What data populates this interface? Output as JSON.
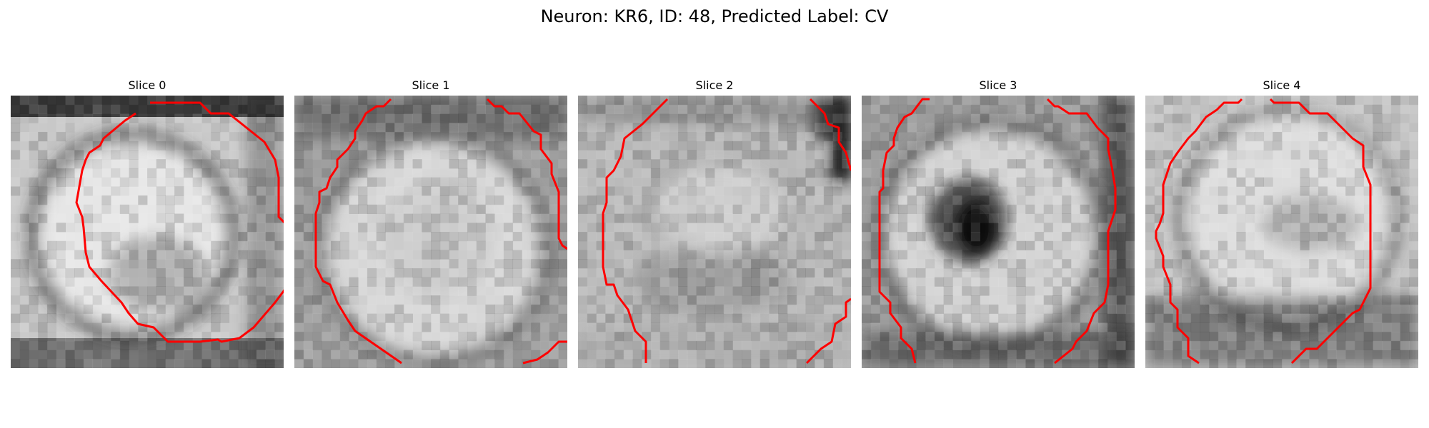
{
  "figure": {
    "title": "Neuron: KR6, ID: 48, Predicted Label: CV",
    "contour_color": "#ff0000"
  },
  "panels": [
    {
      "title": "Slice 0"
    },
    {
      "title": "Slice 1"
    },
    {
      "title": "Slice 2"
    },
    {
      "title": "Slice 3"
    },
    {
      "title": "Slice 4"
    }
  ]
}
